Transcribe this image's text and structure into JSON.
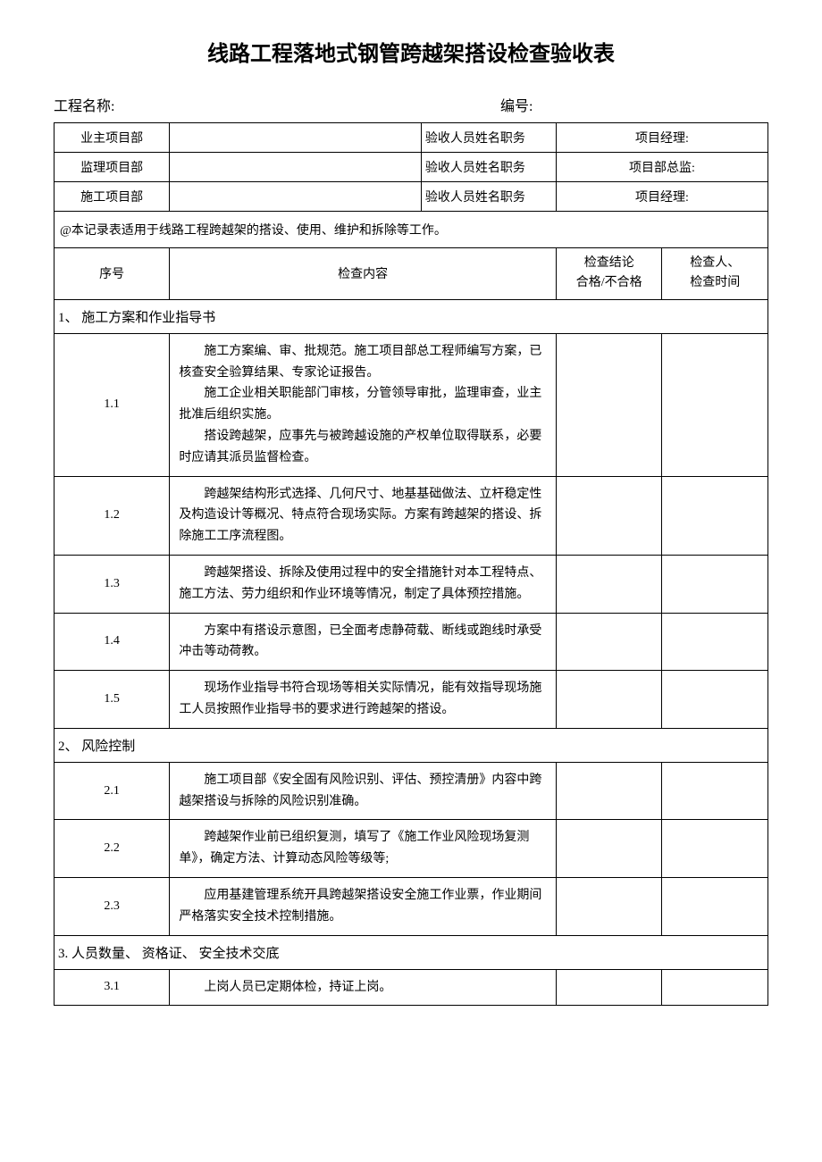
{
  "title": "线路工程落地式钢管跨越架搭设检查验收表",
  "header": {
    "project_label": "工程名称:",
    "serial_label": "编号:"
  },
  "dept_rows": [
    {
      "label": "业主项目部",
      "accept": "验收人员姓名职务",
      "role": "项目经理:"
    },
    {
      "label": "监理项目部",
      "accept": "验收人员姓名职务",
      "role": "项目部总监:"
    },
    {
      "label": "施工项目部",
      "accept": "验收人员姓名职务",
      "role": "项目经理:"
    }
  ],
  "note": "@本记录表适用于线路工程跨越架的搭设、使用、维护和拆除等工作。",
  "table_headers": {
    "seq": "序号",
    "content": "检查内容",
    "result_l1": "检查结论",
    "result_l2": "合格/不合格",
    "inspector_l1": "检查人、",
    "inspector_l2": "检查时间"
  },
  "sections": [
    {
      "title": "1、 施工方案和作业指导书",
      "rows": [
        {
          "seq": "1.1",
          "paras": [
            "施工方案编、审、批规范。施工项目部总工程师编写方案，已核查安全验算结果、专家论证报告。",
            "施工企业相关职能部门审核，分管领导审批，监理审查，业主批准后组织实施。",
            "搭设跨越架，应事先与被跨越设施的产权单位取得联系，必要时应请其派员监督检查。"
          ]
        },
        {
          "seq": "1.2",
          "paras": [
            "跨越架结构形式选择、几何尺寸、地基基础做法、立杆稳定性及构造设计等概况、特点符合现场实际。方案有跨越架的搭设、拆除施工工序流程图。"
          ]
        },
        {
          "seq": "1.3",
          "paras": [
            "跨越架搭设、拆除及使用过程中的安全措施针对本工程特点、施工方法、劳力组织和作业环境等情况，制定了具体预控措施。"
          ]
        },
        {
          "seq": "1.4",
          "paras": [
            "方案中有搭设示意图，已全面考虑静荷载、断线或跑线时承受冲击等动荷教。"
          ]
        },
        {
          "seq": "1.5",
          "paras": [
            "现场作业指导书符合现场等相关实际情况，能有效指导现场施工人员按照作业指导书的要求进行跨越架的搭设。"
          ]
        }
      ]
    },
    {
      "title": "2、 风险控制",
      "rows": [
        {
          "seq": "2.1",
          "paras": [
            "施工项目部《安全固有风险识别、评估、预控清册》内容中跨越架搭设与拆除的风险识别准确。"
          ]
        },
        {
          "seq": "2.2",
          "paras": [
            "跨越架作业前已组织复测，填写了《施工作业风险现场复测单》，确定方法、计算动态风险等级等;"
          ]
        },
        {
          "seq": "2.3",
          "paras": [
            "应用基建管理系统开具跨越架搭设安全施工作业票，作业期间严格落实安全技术控制措施。"
          ]
        }
      ]
    },
    {
      "title": "3. 人员数量、 资格证、 安全技术交底",
      "rows": [
        {
          "seq": "3.1",
          "paras": [
            "上岗人员已定期体检，持证上岗。"
          ]
        }
      ]
    }
  ]
}
